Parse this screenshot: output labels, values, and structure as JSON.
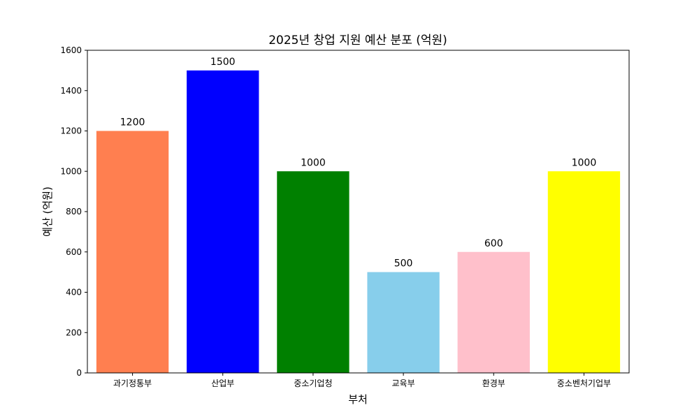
{
  "chart_data": {
    "type": "bar",
    "title": "2025년 창업 지원 예산 분포 (억원)",
    "xlabel": "부처",
    "ylabel": "예산 (억원)",
    "categories": [
      "과기정통부",
      "산업부",
      "중소기업청",
      "교육부",
      "환경부",
      "중소벤처기업부"
    ],
    "values": [
      1200,
      1500,
      1000,
      500,
      600,
      1000
    ],
    "colors": [
      "#ff7f50",
      "#0000ff",
      "#008000",
      "#87ceeb",
      "#ffc0cb",
      "#ffff00"
    ],
    "data_labels": [
      "1200",
      "1500",
      "1000",
      "500",
      "600",
      "1000"
    ],
    "ylim": [
      0,
      1600
    ],
    "yticks": [
      0,
      200,
      400,
      600,
      800,
      1000,
      1200,
      1400,
      1600
    ],
    "grid": false,
    "legend": "none"
  }
}
